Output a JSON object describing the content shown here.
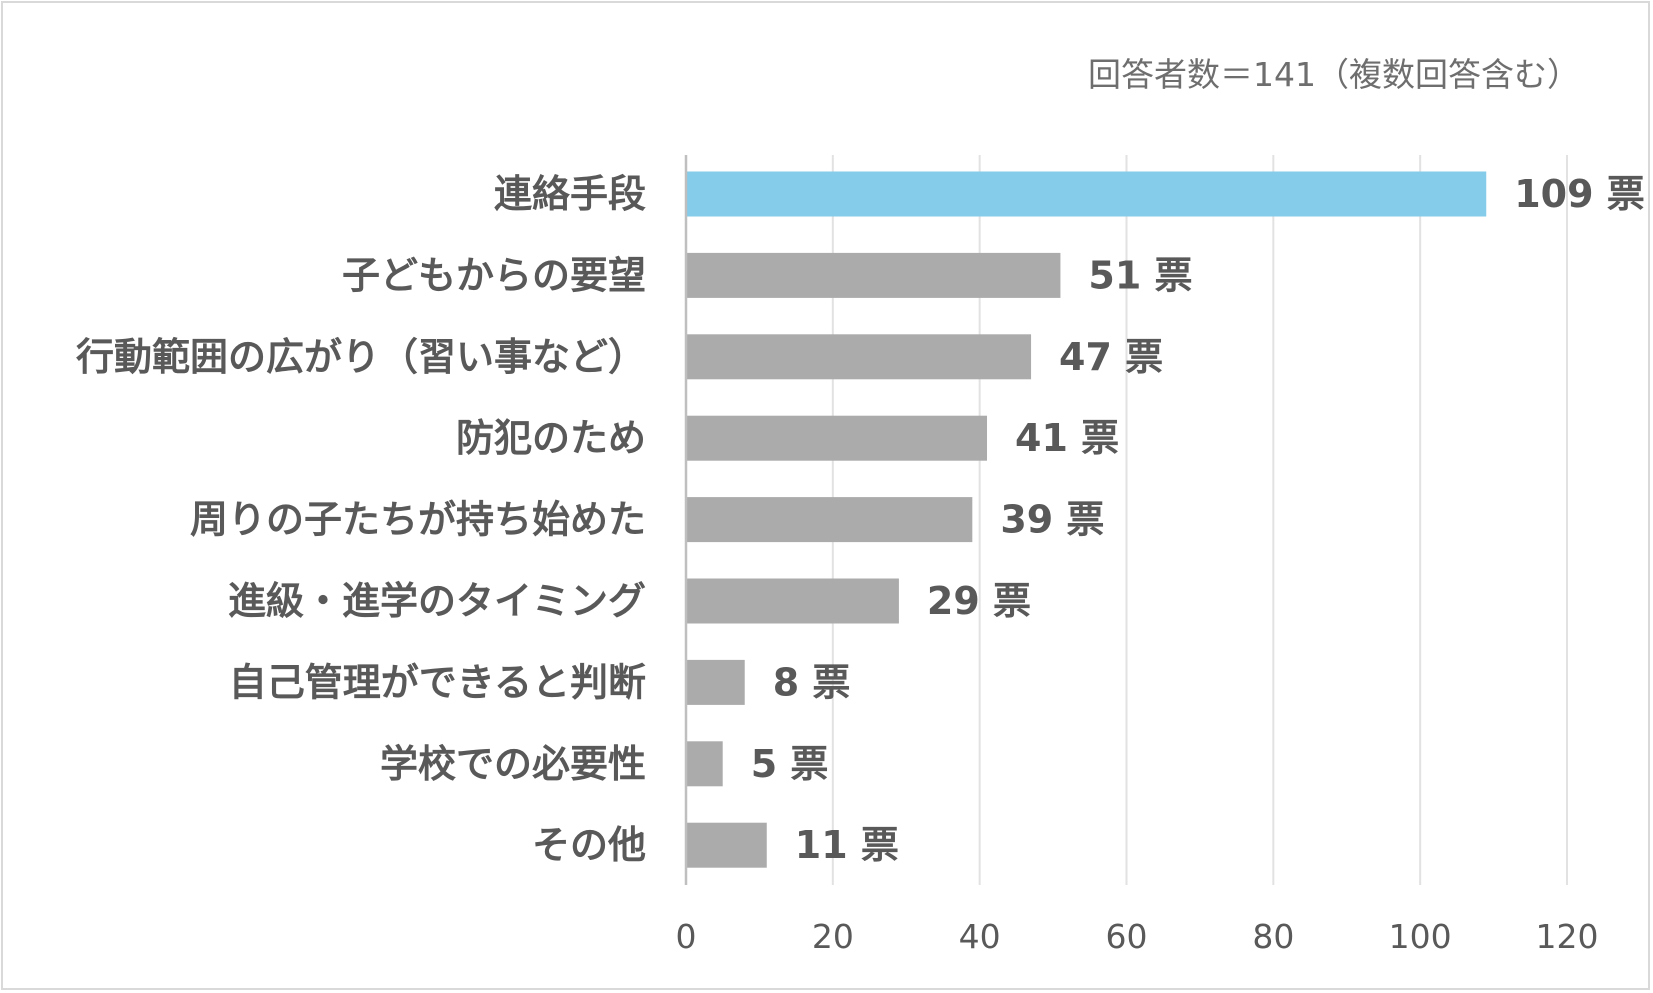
{
  "chart_data": {
    "type": "bar",
    "orientation": "horizontal",
    "note": "回答者数＝141（複数回答含む）",
    "value_suffix": "票",
    "categories": [
      "連絡手段",
      "子どもからの要望",
      "行動範囲の広がり（習い事など）",
      "防犯のため",
      "周りの子たちが持ち始めた",
      "進級・進学のタイミング",
      "自己管理ができると判断",
      "学校での必要性",
      "その他"
    ],
    "values": [
      109,
      51,
      47,
      41,
      39,
      29,
      8,
      5,
      11
    ],
    "value_labels": [
      "109 票",
      "51 票",
      "47 票",
      "41 票",
      "39 票",
      "29 票",
      "8 票",
      "5 票",
      "11 票"
    ],
    "xlim": [
      0,
      120
    ],
    "xticks": [
      "0",
      "20",
      "40",
      "60",
      "80",
      "100",
      "120"
    ],
    "xtick_values": [
      0,
      20,
      40,
      60,
      80,
      100,
      120
    ],
    "grid": "vertical",
    "colors": {
      "highlight": "#85CBEA",
      "default": "#ABABAB",
      "grid": "#E2E2E2",
      "axis": "#BFBFBF",
      "text": "#595959"
    },
    "highlight_index": 0
  }
}
